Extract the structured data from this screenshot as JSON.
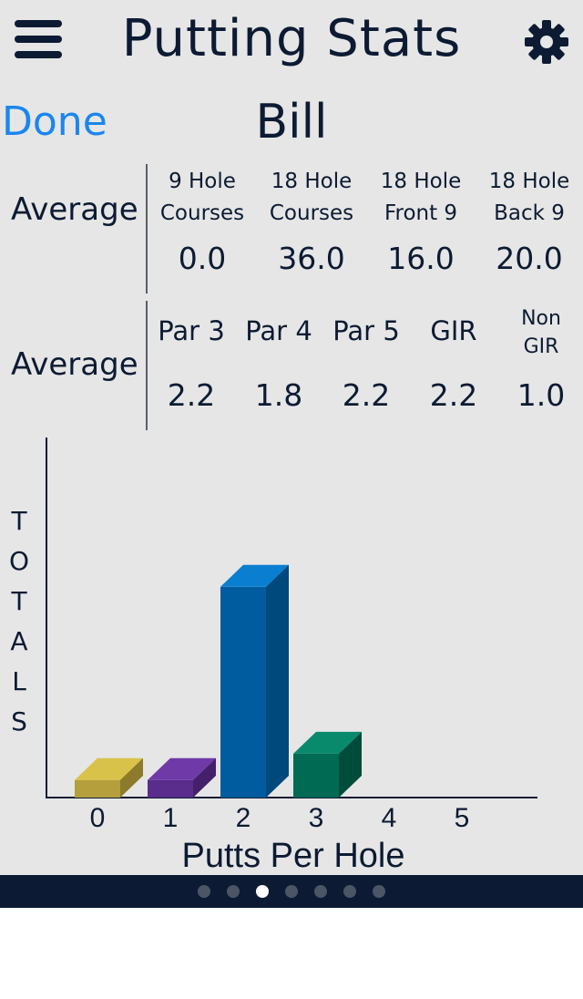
{
  "header": {
    "title": "Putting Stats",
    "menu_icon": "hamburger-menu-icon",
    "settings_icon": "gear-icon"
  },
  "player": {
    "done_label": "Done",
    "name": "Bill"
  },
  "course_averages": {
    "label": "Average",
    "columns": [
      {
        "line1": "9 Hole",
        "line2": "Courses",
        "value": "0.0"
      },
      {
        "line1": "18 Hole",
        "line2": "Courses",
        "value": "36.0"
      },
      {
        "line1": "18 Hole",
        "line2": "Front 9",
        "value": "16.0"
      },
      {
        "line1": "18 Hole",
        "line2": "Back 9",
        "value": "20.0"
      }
    ]
  },
  "hole_averages": {
    "label": "Average",
    "columns": [
      {
        "label": "Par 3",
        "value": "2.2"
      },
      {
        "label": "Par 4",
        "value": "1.8"
      },
      {
        "label": "Par 5",
        "value": "2.2"
      },
      {
        "label": "GIR",
        "value": "2.2"
      },
      {
        "line1": "Non",
        "line2": "GIR",
        "value": "1.0"
      }
    ]
  },
  "chart_data": {
    "type": "bar",
    "xlabel": "Putts Per Hole",
    "ylabel": "TOTALS",
    "ylabel_letters": [
      "T",
      "O",
      "T",
      "A",
      "L",
      "S"
    ],
    "categories": [
      "0",
      "1",
      "2",
      "3",
      "4",
      "5"
    ],
    "values": [
      2,
      2,
      24,
      5,
      0,
      0
    ],
    "ylim": [
      0,
      30
    ],
    "grid": false,
    "legend": "none",
    "colors": [
      {
        "front": "#b59e3c",
        "top": "#d9c24a",
        "side": "#8d7a2a"
      },
      {
        "front": "#5a2c8c",
        "top": "#6f3aa8",
        "side": "#44206b"
      },
      {
        "front": "#005c9e",
        "top": "#0a7fd1",
        "side": "#00497d"
      },
      {
        "front": "#006a52",
        "top": "#0a8a6c",
        "side": "#004c3b"
      },
      {
        "front": "#888888",
        "top": "#aaaaaa",
        "side": "#666666"
      },
      {
        "front": "#888888",
        "top": "#aaaaaa",
        "side": "#666666"
      }
    ]
  },
  "pager": {
    "count": 7,
    "active_index": 2
  }
}
